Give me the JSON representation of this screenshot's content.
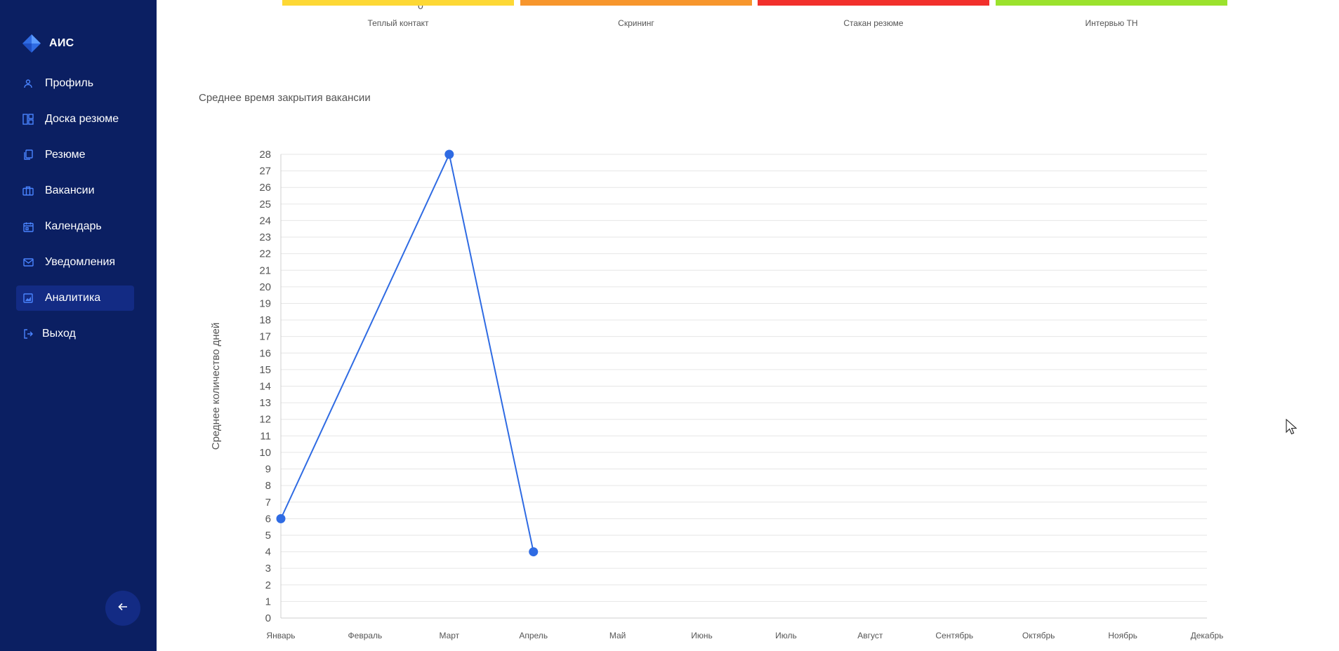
{
  "app": {
    "brand": "АИС",
    "brand_color": "#3b82f6",
    "sidebar_bg": "#0b1f62",
    "accent": "#2f6be3"
  },
  "sidebar": {
    "items": [
      {
        "label": "Профиль",
        "icon": "user-icon",
        "active": false
      },
      {
        "label": "Доска резюме",
        "icon": "board-icon",
        "active": false
      },
      {
        "label": "Резюме",
        "icon": "documents-icon",
        "active": false
      },
      {
        "label": "Вакансии",
        "icon": "briefcase-icon",
        "active": false
      },
      {
        "label": "Календарь",
        "icon": "calendar-icon",
        "active": false
      },
      {
        "label": "Уведомления",
        "icon": "mail-icon",
        "active": false
      },
      {
        "label": "Аналитика",
        "icon": "chart-icon",
        "active": true
      },
      {
        "label": "Выход",
        "icon": "logout-icon",
        "active": false
      }
    ],
    "collapse_icon": "arrow-left-icon"
  },
  "funnel_chart": {
    "zero_tick": "0",
    "categories": [
      "Теплый контакт",
      "Скрининг",
      "Стакан резюме",
      "Интервью ТН"
    ],
    "colors": [
      "#fdd835",
      "#f7962d",
      "#f2302c",
      "#9be22d"
    ]
  },
  "chart_title": "Среднее время закрытия вакансии",
  "chart_data": {
    "type": "line",
    "title": "Среднее время закрытия вакансии",
    "ylabel": "Среднее количество дней",
    "xlabel": "",
    "categories": [
      "Январь",
      "Февраль",
      "Март",
      "Апрель",
      "Май",
      "Июнь",
      "Июль",
      "Август",
      "Сентябрь",
      "Октябрь",
      "Ноябрь",
      "Декабрь"
    ],
    "points": [
      {
        "category": "Январь",
        "value": 6
      },
      {
        "category": "Март",
        "value": 28
      },
      {
        "category": "Апрель",
        "value": 4
      }
    ],
    "ylim": [
      0,
      28
    ],
    "grid": true,
    "line_color": "#2f6be3"
  }
}
